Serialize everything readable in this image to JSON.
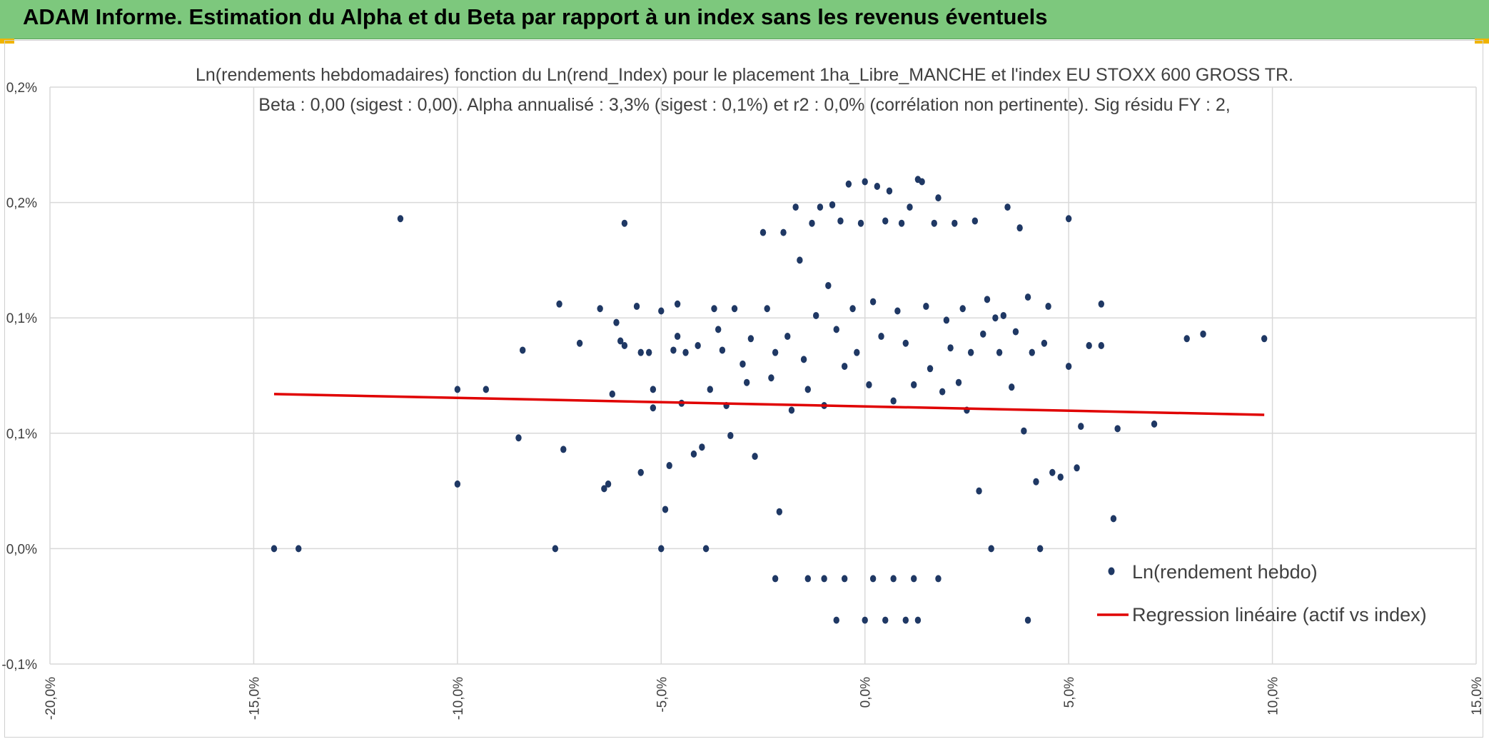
{
  "header": {
    "title": "ADAM Informe. Estimation du Alpha et du Beta par rapport à un index sans les revenus éventuels"
  },
  "colors": {
    "header_bg": "#7dc87d",
    "points": "#1f3864",
    "regression": "#e00000",
    "grid": "#d9d9d9"
  },
  "chart_data": {
    "type": "scatter",
    "title": "Ln(rendements hebdomadaires) fonction du Ln(rend_Index) pour le placement 1ha_Libre_MANCHE et l'index EU STOXX 600 GROSS TR.",
    "subtitle": "Beta : 0,00 (sigest : 0,00). Alpha annualisé : 3,3% (sigest : 0,1%) et r2 : 0,0% (corrélation non pertinente). Sig résidu FY : 2,",
    "xlabel": "",
    "ylabel": "",
    "xlim": [
      -20,
      15
    ],
    "ylim": [
      -0.05,
      0.2
    ],
    "x_ticks": [
      -20,
      -15,
      -10,
      -5,
      0,
      5,
      10,
      15
    ],
    "x_tick_labels": [
      "-20,0%",
      "-15,0%",
      "-10,0%",
      "-5,0%",
      "0,0%",
      "5,0%",
      "10,0%",
      "15,0%"
    ],
    "y_ticks": [
      -0.05,
      0,
      0.05,
      0.1,
      0.15,
      0.2
    ],
    "y_tick_labels": [
      "-0,1%",
      "0,0%",
      "0,1%",
      "0,1%",
      "0,2%",
      "0,2%"
    ],
    "grid": true,
    "legend_position": "bottom-right",
    "series": [
      {
        "name": "Ln(rendement hebdo)",
        "kind": "scatter",
        "points": [
          [
            -14.5,
            0.0
          ],
          [
            -13.9,
            0.0
          ],
          [
            -11.4,
            0.143
          ],
          [
            -10.0,
            0.069
          ],
          [
            -10.0,
            0.028
          ],
          [
            -9.3,
            0.069
          ],
          [
            -8.4,
            0.086
          ],
          [
            -8.5,
            0.048
          ],
          [
            -7.5,
            0.106
          ],
          [
            -7.6,
            0.0
          ],
          [
            -7.4,
            0.043
          ],
          [
            -7.0,
            0.089
          ],
          [
            -6.5,
            0.104
          ],
          [
            -6.4,
            0.026
          ],
          [
            -6.3,
            0.028
          ],
          [
            -6.2,
            0.067
          ],
          [
            -6.1,
            0.098
          ],
          [
            -6.0,
            0.09
          ],
          [
            -5.9,
            0.088
          ],
          [
            -5.9,
            0.141
          ],
          [
            -5.6,
            0.105
          ],
          [
            -5.5,
            0.085
          ],
          [
            -5.5,
            0.033
          ],
          [
            -5.3,
            0.085
          ],
          [
            -5.2,
            0.061
          ],
          [
            -5.2,
            0.069
          ],
          [
            -5.0,
            0.103
          ],
          [
            -4.9,
            0.017
          ],
          [
            -4.8,
            0.036
          ],
          [
            -5.0,
            0.0
          ],
          [
            -4.7,
            0.086
          ],
          [
            -4.6,
            0.092
          ],
          [
            -4.6,
            0.106
          ],
          [
            -4.5,
            0.063
          ],
          [
            -4.4,
            0.085
          ],
          [
            -4.2,
            0.041
          ],
          [
            -4.1,
            0.088
          ],
          [
            -4.0,
            0.044
          ],
          [
            -3.9,
            0.0
          ],
          [
            -3.8,
            0.069
          ],
          [
            -3.7,
            0.104
          ],
          [
            -3.6,
            0.095
          ],
          [
            -3.5,
            0.086
          ],
          [
            -3.4,
            0.062
          ],
          [
            -3.3,
            0.049
          ],
          [
            -3.2,
            0.104
          ],
          [
            -3.0,
            0.08
          ],
          [
            -2.9,
            0.072
          ],
          [
            -2.8,
            0.091
          ],
          [
            -2.7,
            0.04
          ],
          [
            -2.5,
            0.137
          ],
          [
            -2.4,
            0.104
          ],
          [
            -2.3,
            0.074
          ],
          [
            -2.2,
            0.085
          ],
          [
            -2.1,
            0.016
          ],
          [
            -2.0,
            0.137
          ],
          [
            -1.9,
            0.092
          ],
          [
            -1.8,
            0.06
          ],
          [
            -1.7,
            0.148
          ],
          [
            -1.6,
            0.125
          ],
          [
            -1.5,
            0.082
          ],
          [
            -1.4,
            0.069
          ],
          [
            -1.3,
            0.141
          ],
          [
            -1.2,
            0.101
          ],
          [
            -1.1,
            0.148
          ],
          [
            -1.0,
            0.062
          ],
          [
            -0.9,
            0.114
          ],
          [
            -0.8,
            0.149
          ],
          [
            -0.7,
            0.095
          ],
          [
            -0.6,
            0.142
          ],
          [
            -0.5,
            0.079
          ],
          [
            -0.4,
            0.158
          ],
          [
            -0.3,
            0.104
          ],
          [
            -0.2,
            0.085
          ],
          [
            -0.1,
            0.141
          ],
          [
            0.0,
            0.159
          ],
          [
            0.1,
            0.071
          ],
          [
            0.2,
            0.107
          ],
          [
            0.3,
            0.157
          ],
          [
            0.4,
            0.092
          ],
          [
            0.5,
            0.142
          ],
          [
            0.6,
            0.155
          ],
          [
            0.7,
            0.064
          ],
          [
            0.8,
            0.103
          ],
          [
            0.9,
            0.141
          ],
          [
            1.0,
            0.089
          ],
          [
            1.1,
            0.148
          ],
          [
            1.2,
            0.071
          ],
          [
            1.3,
            0.16
          ],
          [
            1.4,
            0.159
          ],
          [
            1.5,
            0.105
          ],
          [
            1.6,
            0.078
          ],
          [
            1.7,
            0.141
          ],
          [
            1.8,
            0.152
          ],
          [
            1.9,
            0.068
          ],
          [
            2.0,
            0.099
          ],
          [
            2.1,
            0.087
          ],
          [
            2.2,
            0.141
          ],
          [
            2.3,
            0.072
          ],
          [
            2.4,
            0.104
          ],
          [
            2.5,
            0.06
          ],
          [
            2.6,
            0.085
          ],
          [
            2.7,
            0.142
          ],
          [
            2.8,
            0.025
          ],
          [
            2.9,
            0.093
          ],
          [
            3.0,
            0.108
          ],
          [
            3.1,
            0.0
          ],
          [
            3.2,
            0.1
          ],
          [
            3.3,
            0.085
          ],
          [
            3.4,
            0.101
          ],
          [
            3.5,
            0.148
          ],
          [
            3.6,
            0.07
          ],
          [
            3.7,
            0.094
          ],
          [
            3.8,
            0.139
          ],
          [
            3.9,
            0.051
          ],
          [
            4.0,
            0.109
          ],
          [
            4.1,
            0.085
          ],
          [
            4.2,
            0.029
          ],
          [
            4.3,
            0.0
          ],
          [
            4.4,
            0.089
          ],
          [
            4.5,
            0.105
          ],
          [
            4.6,
            0.033
          ],
          [
            4.8,
            0.031
          ],
          [
            5.0,
            0.079
          ],
          [
            5.0,
            0.143
          ],
          [
            5.2,
            0.035
          ],
          [
            5.3,
            0.053
          ],
          [
            5.5,
            0.088
          ],
          [
            5.8,
            0.088
          ],
          [
            5.8,
            0.106
          ],
          [
            6.1,
            0.013
          ],
          [
            6.2,
            0.052
          ],
          [
            7.1,
            0.054
          ],
          [
            7.9,
            0.091
          ],
          [
            8.3,
            0.093
          ],
          [
            9.8,
            0.091
          ],
          [
            -2.2,
            -0.013
          ],
          [
            -1.4,
            -0.013
          ],
          [
            -1.0,
            -0.013
          ],
          [
            -0.5,
            -0.013
          ],
          [
            0.2,
            -0.013
          ],
          [
            0.7,
            -0.013
          ],
          [
            1.2,
            -0.013
          ],
          [
            1.8,
            -0.013
          ],
          [
            -0.7,
            -0.031
          ],
          [
            0.0,
            -0.031
          ],
          [
            0.5,
            -0.031
          ],
          [
            1.0,
            -0.031
          ],
          [
            1.3,
            -0.031
          ],
          [
            4.0,
            -0.031
          ]
        ]
      },
      {
        "name": "Regression linéaire (actif vs index)",
        "kind": "line",
        "points": [
          [
            -14.5,
            0.067
          ],
          [
            9.8,
            0.058
          ]
        ]
      }
    ]
  }
}
